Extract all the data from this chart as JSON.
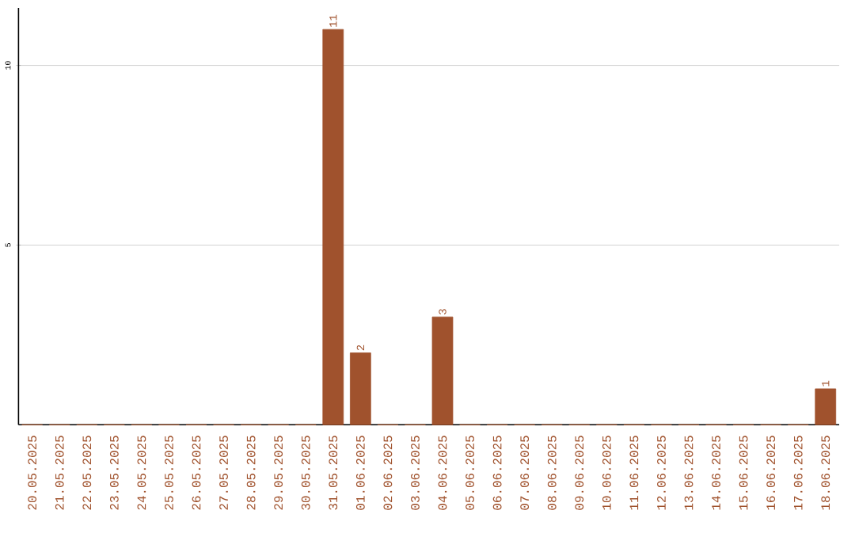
{
  "chart_data": {
    "type": "bar",
    "categories": [
      "20.05.2025",
      "21.05.2025",
      "22.05.2025",
      "23.05.2025",
      "24.05.2025",
      "25.05.2025",
      "26.05.2025",
      "27.05.2025",
      "28.05.2025",
      "29.05.2025",
      "30.05.2025",
      "31.05.2025",
      "01.06.2025",
      "02.06.2025",
      "03.06.2025",
      "04.06.2025",
      "05.06.2025",
      "06.06.2025",
      "07.06.2025",
      "08.06.2025",
      "09.06.2025",
      "10.06.2025",
      "11.06.2025",
      "12.06.2025",
      "13.06.2025",
      "14.06.2025",
      "15.06.2025",
      "16.06.2025",
      "17.06.2025",
      "18.06.2025"
    ],
    "values": [
      0,
      0,
      0,
      0,
      0,
      0,
      0,
      0,
      0,
      0,
      0,
      11,
      2,
      0,
      0,
      3,
      0,
      0,
      0,
      0,
      0,
      0,
      0,
      0,
      0,
      0,
      0,
      0,
      0,
      1
    ],
    "value_labels": [
      null,
      null,
      null,
      null,
      null,
      null,
      null,
      null,
      null,
      null,
      null,
      "11",
      "2",
      null,
      null,
      "3",
      null,
      null,
      null,
      null,
      null,
      null,
      null,
      null,
      null,
      null,
      null,
      null,
      null,
      "1"
    ],
    "color": "#a0522d",
    "ylim": [
      0,
      11.6
    ],
    "yticks": [
      5,
      10
    ],
    "grid": "y"
  }
}
